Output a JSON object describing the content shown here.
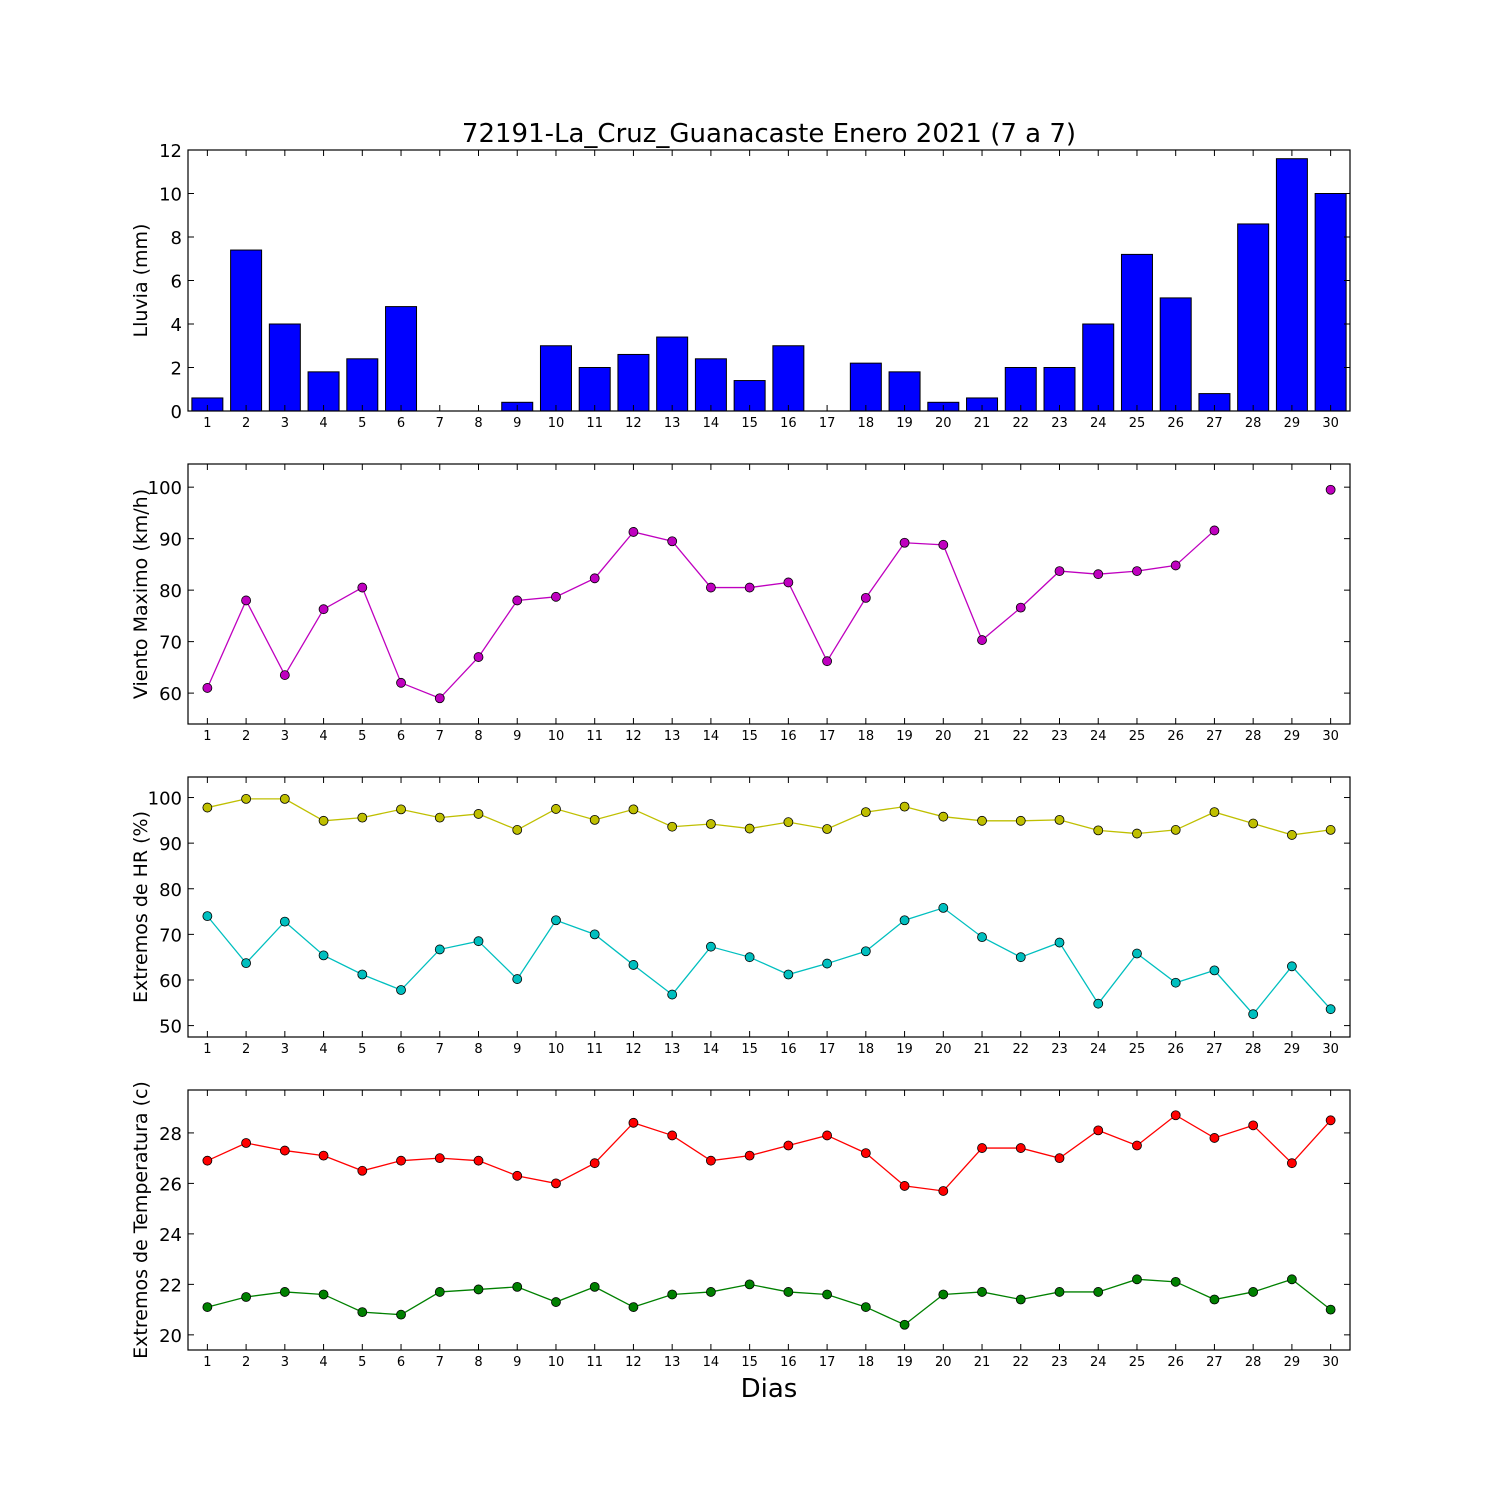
{
  "chart_data": {
    "title": "72191-La_Cruz_Guanacaste Enero 2021  (7 a 7)",
    "xlabel": "Dias",
    "days": [
      1,
      2,
      3,
      4,
      5,
      6,
      7,
      8,
      9,
      10,
      11,
      12,
      13,
      14,
      15,
      16,
      17,
      18,
      19,
      20,
      21,
      22,
      23,
      24,
      25,
      26,
      27,
      28,
      29,
      30
    ],
    "panels": [
      {
        "id": "lluvia",
        "type": "bar",
        "ylabel": "Lluvia (mm)",
        "ylim": [
          0,
          12
        ],
        "yticks": [
          0,
          2,
          4,
          6,
          8,
          10,
          12
        ],
        "series": [
          {
            "color": "#0000ff",
            "values": [
              0.6,
              7.4,
              4.0,
              1.8,
              2.4,
              4.8,
              0,
              0,
              0.4,
              3.0,
              2.0,
              2.6,
              3.4,
              2.4,
              1.4,
              3.0,
              0,
              2.2,
              1.8,
              0.4,
              0.6,
              2.0,
              2.0,
              4.0,
              7.2,
              5.2,
              0.8,
              8.6,
              11.6,
              10.0
            ]
          }
        ]
      },
      {
        "id": "viento",
        "type": "line",
        "ylabel": "Viento Maximo (km/h)",
        "ylim": [
          54,
          104.5
        ],
        "yticks": [
          60,
          70,
          80,
          90,
          100
        ],
        "series": [
          {
            "color": "#bf00bf",
            "values": [
              61,
              78,
              63.5,
              76.3,
              80.5,
              62,
              59,
              67,
              78,
              78.7,
              82.3,
              91.3,
              89.5,
              80.5,
              80.5,
              81.5,
              66.2,
              78.5,
              89.2,
              88.8,
              70.3,
              76.6,
              83.7,
              83.1,
              83.7,
              84.8,
              91.6,
              null,
              null,
              99.5
            ]
          }
        ]
      },
      {
        "id": "hr",
        "type": "line",
        "ylabel": "Extremos de HR (%)",
        "ylim": [
          47.5,
          104.5
        ],
        "yticks": [
          50,
          60,
          70,
          80,
          90,
          100
        ],
        "series": [
          {
            "color": "#bfbf00",
            "values": [
              97.8,
              99.7,
              99.7,
              94.9,
              95.6,
              97.4,
              95.6,
              96.4,
              92.9,
              97.5,
              95.1,
              97.4,
              93.6,
              94.2,
              93.2,
              94.6,
              93.1,
              96.8,
              98.0,
              95.8,
              94.9,
              94.9,
              95.1,
              92.8,
              92.1,
              92.9,
              96.8,
              94.3,
              91.8,
              92.9
            ]
          },
          {
            "color": "#00bfbf",
            "values": [
              74.0,
              63.7,
              72.8,
              65.4,
              61.2,
              57.8,
              66.7,
              68.5,
              60.2,
              73.1,
              70.0,
              63.3,
              56.8,
              67.3,
              65.0,
              61.2,
              63.6,
              66.3,
              73.1,
              75.8,
              69.4,
              65.0,
              68.2,
              54.8,
              65.8,
              59.4,
              62.1,
              52.5,
              63.0,
              53.6
            ]
          }
        ]
      },
      {
        "id": "temperatura",
        "type": "line",
        "ylabel": "Extremos de Temperatura (c)",
        "ylim": [
          19.4,
          29.7
        ],
        "yticks": [
          20,
          22,
          24,
          26,
          28
        ],
        "series": [
          {
            "color": "#ff0000",
            "values": [
              26.9,
              27.6,
              27.3,
              27.1,
              26.5,
              26.9,
              27.0,
              26.9,
              26.3,
              26.0,
              26.8,
              28.4,
              27.9,
              26.9,
              27.1,
              27.5,
              27.9,
              27.2,
              25.9,
              25.7,
              27.4,
              27.4,
              27.0,
              28.1,
              27.5,
              28.7,
              27.8,
              28.3,
              26.8,
              28.5
            ]
          },
          {
            "color": "#008000",
            "values": [
              21.1,
              21.5,
              21.7,
              21.6,
              20.9,
              20.8,
              21.7,
              21.8,
              21.9,
              21.3,
              21.9,
              21.1,
              21.6,
              21.7,
              22.0,
              21.7,
              21.6,
              21.1,
              20.4,
              21.6,
              21.7,
              21.4,
              21.7,
              21.7,
              22.2,
              22.1,
              21.4,
              21.7,
              22.2,
              21.0
            ]
          }
        ]
      }
    ]
  }
}
